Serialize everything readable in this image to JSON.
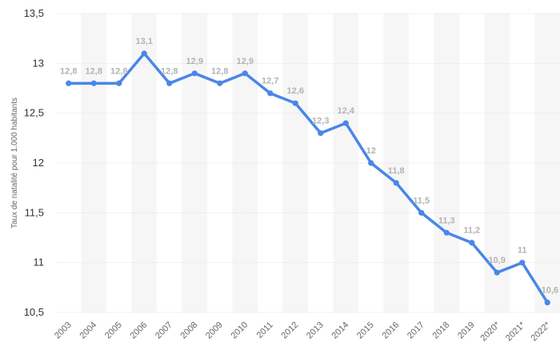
{
  "chart_data": {
    "type": "line",
    "ylabel": "Taux de natalité pour 1.000 habitants",
    "ylim": [
      10.5,
      13.5
    ],
    "yticks": [
      13.5,
      13,
      12.5,
      12,
      11.5,
      11,
      10.5
    ],
    "ytick_labels": [
      "13,5",
      "13",
      "12,5",
      "12",
      "11,5",
      "11",
      "10,5"
    ],
    "grid": true,
    "alternating_column_bands": true,
    "line_color": "#4a86e8",
    "categories": [
      "2003",
      "2004",
      "2005",
      "2006",
      "2007",
      "2008",
      "2009",
      "2010",
      "2011",
      "2012",
      "2013",
      "2014",
      "2015",
      "2016",
      "2017",
      "2018",
      "2019",
      "2020*",
      "2021*",
      "2022*"
    ],
    "values": [
      12.8,
      12.8,
      12.8,
      13.1,
      12.8,
      12.9,
      12.8,
      12.9,
      12.7,
      12.6,
      12.3,
      12.4,
      12.0,
      11.8,
      11.5,
      11.3,
      11.2,
      10.9,
      11.0,
      10.6
    ],
    "value_labels": [
      "12,8",
      "12,8",
      "12,8",
      "13,1",
      "12,8",
      "12,9",
      "12,8",
      "12,9",
      "12,7",
      "12,6",
      "12,3",
      "12,4",
      "12",
      "11,8",
      "11,5",
      "11,3",
      "11,2",
      "10,9",
      "11",
      "10,6"
    ]
  }
}
